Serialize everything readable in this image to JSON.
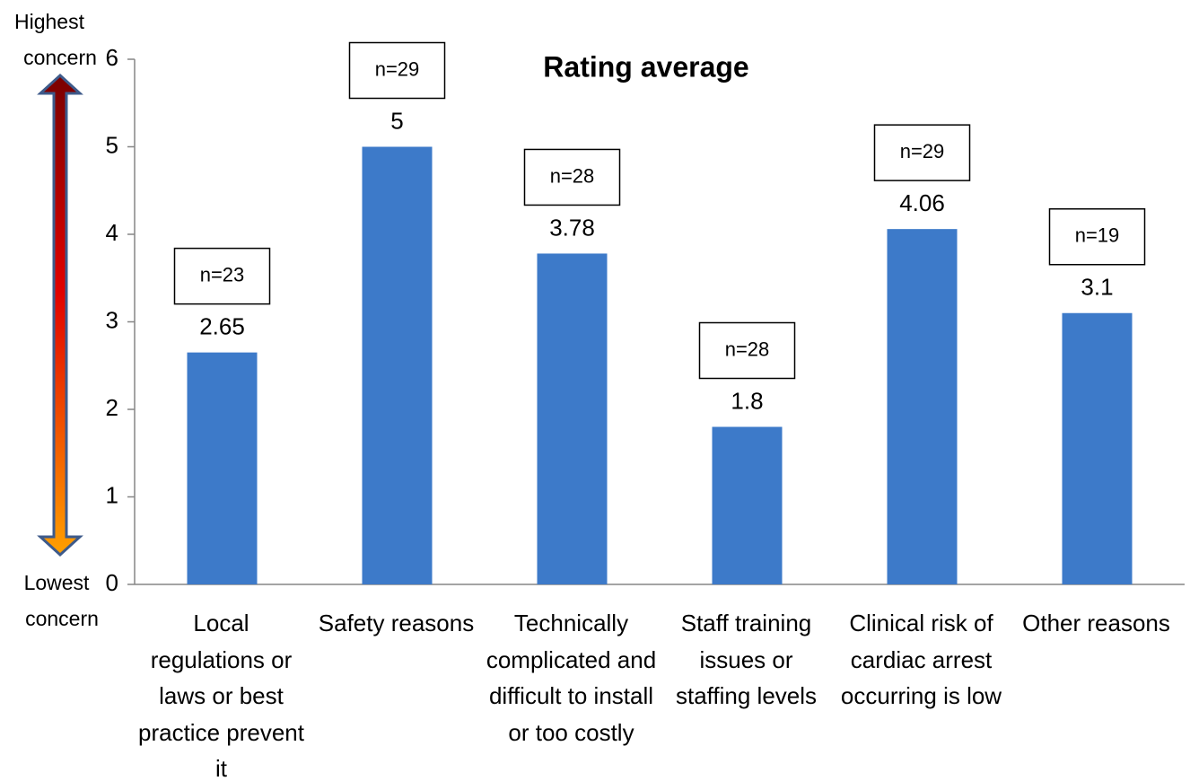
{
  "chart_data": {
    "type": "bar",
    "title": "Rating average",
    "categories": [
      "Local regulations or laws or best practice prevent it",
      "Safety reasons",
      "Technically complicated and difficult to install or too costly",
      "Staff training issues or staffing levels",
      "Clinical risk of cardiac arrest occurring is low",
      "Other reasons"
    ],
    "values": [
      2.65,
      5,
      3.78,
      1.8,
      4.06,
      3.1
    ],
    "annotations": [
      "n=23",
      "n=29",
      "n=28",
      "n=28",
      "n=29",
      "n=19"
    ],
    "axis_top_label": [
      "Highest",
      "concern"
    ],
    "axis_bottom_label": [
      "Lowest",
      "concern"
    ],
    "color": "#3d7ac9",
    "ylim": [
      0,
      6
    ],
    "yticks": [
      0,
      1,
      2,
      3,
      4,
      5,
      6
    ],
    "grid": false
  }
}
